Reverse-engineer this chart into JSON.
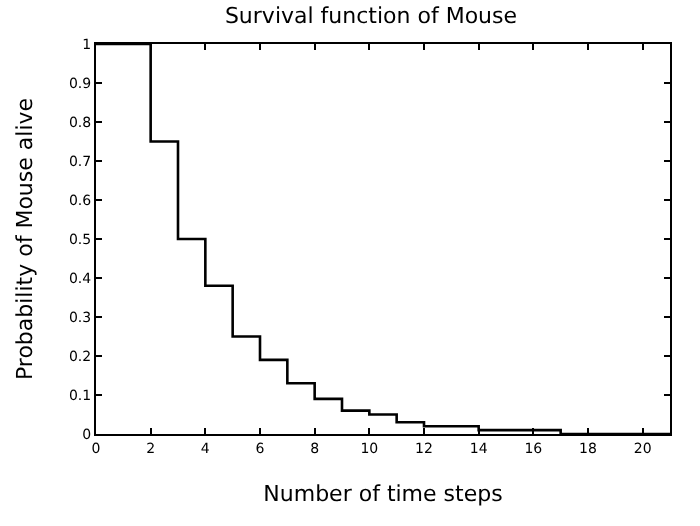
{
  "chart_data": {
    "type": "step",
    "title": "Survival function of Mouse",
    "xlabel": "Number of time steps",
    "ylabel": "Probability of Mouse alive",
    "x": [
      0,
      2,
      3,
      4,
      5,
      6,
      7,
      8,
      9,
      10,
      11,
      12,
      13,
      14,
      15,
      16,
      17,
      18,
      19,
      20,
      21
    ],
    "series": [
      {
        "color": "#000000",
        "values": [
          1,
          0.75,
          0.5,
          0.38,
          0.25,
          0.19,
          0.13,
          0.09,
          0.06,
          0.05,
          0.03,
          0.02,
          0.02,
          0.01,
          0.01,
          0.01,
          0,
          0,
          0,
          0,
          0
        ]
      }
    ],
    "xlim": [
      0,
      21
    ],
    "xticks": [
      0,
      2,
      4,
      6,
      8,
      10,
      12,
      14,
      16,
      18,
      20
    ],
    "ylim": [
      0,
      1
    ],
    "yticks": [
      0,
      0.1,
      0.2,
      0.3,
      0.4,
      0.5,
      0.6,
      0.7,
      0.8,
      0.9,
      1
    ],
    "legend": false,
    "marker": "none",
    "line_style": "solid"
  }
}
